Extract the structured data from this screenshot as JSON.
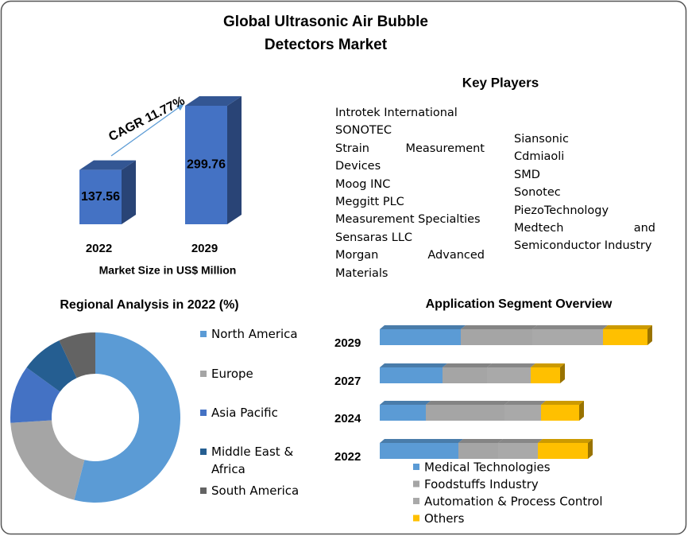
{
  "title": [
    "Global Ultrasonic Air Bubble",
    "Detectors Market"
  ],
  "key_players": {
    "title": "Key Players",
    "left": [
      "Introtek International",
      "SONOTEC",
      "Strain Measurement Devices",
      "Moog INC",
      "Meggitt PLC",
      "Measurement Specialties",
      "Sensaras LLC",
      "Morgan Advanced Materials"
    ],
    "right": [
      "Siansonic",
      "Cdmiaoli",
      "SMD",
      "Sonotec",
      "PiezoTechnology",
      "Medtech and Semiconductor Industry"
    ]
  },
  "chart_data": [
    {
      "type": "bar",
      "categories": [
        "2022",
        "2029"
      ],
      "values": [
        137.56,
        299.76
      ],
      "color": "#4472c4",
      "xlabel": "Market Size in US$ Million",
      "annotation": "CAGR 11.77%"
    },
    {
      "type": "pie",
      "title": "Regional Analysis in 2022 (%)",
      "categories": [
        "North America",
        "Europe",
        "Asia Pacific",
        "Middle East & Africa",
        "South America"
      ],
      "values": [
        54,
        20,
        11,
        8,
        7
      ],
      "colors": [
        "#5b9bd5",
        "#a5a5a5",
        "#4472c4",
        "#255e91",
        "#636363"
      ]
    },
    {
      "type": "stacked_barh",
      "title": "Application  Segment Overview",
      "categories": [
        "2029",
        "2027",
        "2024",
        "2022"
      ],
      "series": [
        {
          "name": "Medical Technologies",
          "color": "#5b9bd5",
          "values": [
            102,
            79,
            58,
            99
          ]
        },
        {
          "name": "Foodstuffs Industry",
          "color": "#a5a5a5",
          "values": [
            90,
            56,
            99,
            50
          ]
        },
        {
          "name": "Automation & Process Control",
          "color": "#a9a9a9",
          "values": [
            89,
            55,
            46,
            50
          ]
        },
        {
          "name": "Others",
          "color": "#ffc000",
          "values": [
            56,
            37,
            48,
            63
          ]
        }
      ]
    }
  ]
}
